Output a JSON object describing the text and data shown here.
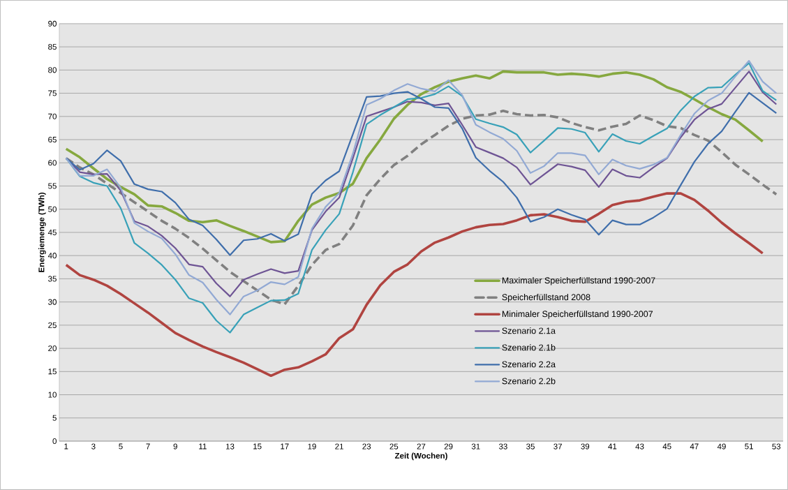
{
  "chart_data": {
    "type": "line",
    "xlabel": "Zeit (Wochen)",
    "ylabel": "Energiemenge (TWh)",
    "xlim": [
      0.5,
      53.5
    ],
    "xticks": [
      1,
      3,
      5,
      7,
      9,
      11,
      13,
      15,
      17,
      19,
      21,
      23,
      25,
      27,
      29,
      31,
      33,
      35,
      37,
      39,
      41,
      43,
      45,
      47,
      49,
      51,
      53
    ],
    "ylim": [
      0,
      90
    ],
    "yticks": [
      0,
      5,
      10,
      15,
      20,
      25,
      30,
      35,
      40,
      45,
      50,
      55,
      60,
      65,
      70,
      75,
      80,
      85,
      90
    ],
    "grid": "y",
    "legend": "bottom right",
    "marker": "none",
    "series": [
      {
        "name": "Maximaler Speicherfüllstand 1990-2007",
        "color": "#86a83f",
        "line_style": "solid",
        "x": [
          1,
          2,
          3,
          4,
          5,
          6,
          7,
          8,
          9,
          10,
          11,
          12,
          13,
          14,
          15,
          16,
          17,
          18,
          19,
          20,
          21,
          22,
          23,
          24,
          25,
          26,
          27,
          28,
          29,
          30,
          31,
          32,
          33,
          34,
          35,
          36,
          37,
          38,
          39,
          40,
          41,
          42,
          43,
          44,
          45,
          46,
          47,
          48,
          49,
          50,
          51,
          52
        ],
        "values": [
          63,
          61.2,
          58.8,
          56.5,
          54.8,
          53.2,
          50.8,
          50.6,
          49.2,
          47.5,
          47.2,
          47.6,
          46.4,
          45.3,
          44.1,
          42.9,
          43.1,
          47.5,
          51,
          52.5,
          53.5,
          55.5,
          61,
          65,
          69.5,
          72.5,
          74.8,
          76.3,
          77.5,
          78.2,
          78.8,
          78.2,
          79.7,
          79.5,
          79.5,
          79.5,
          79,
          79.2,
          79,
          78.6,
          79.2,
          79.5,
          79,
          78,
          76.3,
          75.3,
          73.7,
          72,
          70.5,
          69.3,
          67,
          64.6
        ]
      },
      {
        "name": "Speicherfüllstand 2008",
        "color": "#808080",
        "line_style": "dashed",
        "x": [
          1,
          2,
          3,
          4,
          5,
          6,
          7,
          8,
          9,
          10,
          11,
          12,
          13,
          14,
          15,
          16,
          17,
          18,
          19,
          20,
          21,
          22,
          23,
          24,
          25,
          26,
          27,
          28,
          29,
          30,
          31,
          32,
          33,
          34,
          35,
          36,
          37,
          38,
          39,
          40,
          41,
          42,
          43,
          44,
          45,
          46,
          47,
          48,
          49,
          50,
          51,
          52,
          53
        ],
        "values": [
          61,
          59,
          57.5,
          55.5,
          53.5,
          51.5,
          49.5,
          47.5,
          45.8,
          43.8,
          41.5,
          39,
          36.5,
          34.5,
          32.5,
          30.5,
          29.5,
          33.5,
          38,
          41.2,
          42.5,
          46.5,
          53,
          56.5,
          59.5,
          61.5,
          64,
          66,
          68,
          69.5,
          70.2,
          70.4,
          71.2,
          70.5,
          70.2,
          70.3,
          69.8,
          68.6,
          67.7,
          67,
          67.8,
          68.4,
          70.2,
          69.2,
          67.9,
          67.5,
          66,
          64.8,
          62.3,
          59.6,
          57.5,
          55.3,
          53.2
        ]
      },
      {
        "name": "Minimaler Speicherfüllstand 1990-2007",
        "color": "#b04440",
        "line_style": "solid",
        "x": [
          1,
          2,
          3,
          4,
          5,
          6,
          7,
          8,
          9,
          10,
          11,
          12,
          13,
          14,
          15,
          16,
          17,
          18,
          19,
          20,
          21,
          22,
          23,
          24,
          25,
          26,
          27,
          28,
          29,
          30,
          31,
          32,
          33,
          34,
          35,
          36,
          37,
          38,
          39,
          40,
          41,
          42,
          43,
          44,
          45,
          46,
          47,
          48,
          49,
          50,
          51,
          52
        ],
        "values": [
          38,
          35.8,
          34.8,
          33.5,
          31.7,
          29.7,
          27.7,
          25.5,
          23.3,
          21.8,
          20.4,
          19.2,
          18.1,
          16.9,
          15.5,
          14.1,
          15.4,
          15.9,
          17.2,
          18.7,
          22.2,
          24.1,
          29.4,
          33.6,
          36.5,
          38.1,
          40.9,
          42.8,
          43.9,
          45.2,
          46.1,
          46.6,
          46.8,
          47.6,
          48.7,
          48.9,
          48.3,
          47.5,
          47.3,
          49,
          50.9,
          51.6,
          51.9,
          52.7,
          53.4,
          53.4,
          52,
          49.7,
          47.1,
          44.8,
          42.7,
          40.5
        ]
      },
      {
        "name": "Szenario 2.1a",
        "color": "#6e5494",
        "line_style": "solid",
        "x": [
          1,
          2,
          3,
          4,
          5,
          6,
          7,
          8,
          9,
          10,
          11,
          12,
          13,
          14,
          15,
          16,
          17,
          18,
          19,
          20,
          21,
          22,
          23,
          24,
          25,
          26,
          27,
          28,
          29,
          30,
          31,
          32,
          33,
          34,
          35,
          36,
          37,
          38,
          39,
          40,
          41,
          42,
          43,
          44,
          45,
          46,
          47,
          48,
          49,
          50,
          51,
          52,
          53
        ],
        "values": [
          61,
          58,
          57.5,
          57.6,
          54,
          47.4,
          46.3,
          44.3,
          41.6,
          38.1,
          37.6,
          34,
          31.2,
          34.8,
          36,
          37.1,
          36.2,
          36.7,
          45.5,
          49.5,
          52.5,
          61,
          70,
          71,
          72,
          73.2,
          73,
          72.4,
          72.8,
          68.2,
          63.4,
          62.2,
          61,
          59,
          55.3,
          57.5,
          59.7,
          59.2,
          58.4,
          54.8,
          58.6,
          57.2,
          56.8,
          59,
          61,
          65.5,
          69.3,
          71.6,
          72.7,
          76.2,
          79.7,
          75.2,
          72.6
        ]
      },
      {
        "name": "Szenario 2.1b",
        "color": "#38a1b8",
        "line_style": "solid",
        "x": [
          1,
          2,
          3,
          4,
          5,
          6,
          7,
          8,
          9,
          10,
          11,
          12,
          13,
          14,
          15,
          16,
          17,
          18,
          19,
          20,
          21,
          22,
          23,
          24,
          25,
          26,
          27,
          28,
          29,
          30,
          31,
          32,
          33,
          34,
          35,
          36,
          37,
          38,
          39,
          40,
          41,
          42,
          43,
          44,
          45,
          46,
          47,
          48,
          49,
          50,
          51,
          52,
          53
        ],
        "values": [
          61,
          57.1,
          55.7,
          55,
          50.2,
          42.7,
          40.5,
          38,
          34.8,
          30.8,
          29.8,
          26,
          23.4,
          27.3,
          28.8,
          30.3,
          30.4,
          31.8,
          41.2,
          45.5,
          49,
          58,
          68.3,
          70.3,
          72,
          73.7,
          74,
          74.8,
          76.5,
          74.4,
          69.4,
          68.5,
          67.7,
          66.1,
          62.2,
          64.8,
          67.5,
          67.3,
          66.5,
          62.4,
          66.2,
          64.7,
          64.1,
          65.8,
          67.4,
          71.3,
          74.3,
          76.2,
          76.3,
          79,
          81.5,
          75.5,
          73.5
        ]
      },
      {
        "name": "Szenario 2.2a",
        "color": "#3f6eab",
        "line_style": "solid",
        "x": [
          1,
          2,
          3,
          4,
          5,
          6,
          7,
          8,
          9,
          10,
          11,
          12,
          13,
          14,
          15,
          16,
          17,
          18,
          19,
          20,
          21,
          22,
          23,
          24,
          25,
          26,
          27,
          28,
          29,
          30,
          31,
          32,
          33,
          34,
          35,
          36,
          37,
          38,
          39,
          40,
          41,
          42,
          43,
          44,
          45,
          46,
          47,
          48,
          49,
          50,
          51,
          52,
          53
        ],
        "values": [
          61,
          58.5,
          59.8,
          62.7,
          60.4,
          55.4,
          54.3,
          53.8,
          51.4,
          47.8,
          46.5,
          43.5,
          40.1,
          43.3,
          43.6,
          44.7,
          43.2,
          44.6,
          53.3,
          56.2,
          58.2,
          66.2,
          74.2,
          74.4,
          75,
          75.3,
          73.8,
          72,
          71.8,
          67.4,
          61.1,
          58.3,
          55.9,
          52.5,
          47.3,
          48.3,
          50,
          48.8,
          47.8,
          44.5,
          47.6,
          46.7,
          46.7,
          48.2,
          50.1,
          55.2,
          60.2,
          64.1,
          66.8,
          71,
          75.1,
          72.9,
          70.7
        ]
      },
      {
        "name": "Szenario 2.2b",
        "color": "#92a9d4",
        "line_style": "solid",
        "x": [
          1,
          2,
          3,
          4,
          5,
          6,
          7,
          8,
          9,
          10,
          11,
          12,
          13,
          14,
          15,
          16,
          17,
          18,
          19,
          20,
          21,
          22,
          23,
          24,
          25,
          26,
          27,
          28,
          29,
          30,
          31,
          32,
          33,
          34,
          35,
          36,
          37,
          38,
          39,
          40,
          41,
          42,
          43,
          44,
          45,
          46,
          47,
          48,
          49,
          50,
          51,
          52,
          53
        ],
        "values": [
          61,
          57.2,
          57.2,
          58.6,
          54.6,
          47,
          45.2,
          43.7,
          40.3,
          35.8,
          34.2,
          30.5,
          27.3,
          31.2,
          32.5,
          34.3,
          33.8,
          35.4,
          45.8,
          50.5,
          53.5,
          62,
          72.5,
          73.8,
          75.6,
          77,
          76,
          75.4,
          77.8,
          74.6,
          68.2,
          66.6,
          65.2,
          62.6,
          57.8,
          59.3,
          62.1,
          62.1,
          61.6,
          57.5,
          60.7,
          59.4,
          58.7,
          59.6,
          61.1,
          66,
          70.6,
          73.4,
          75,
          78.6,
          82,
          77.5,
          75
        ]
      }
    ]
  }
}
